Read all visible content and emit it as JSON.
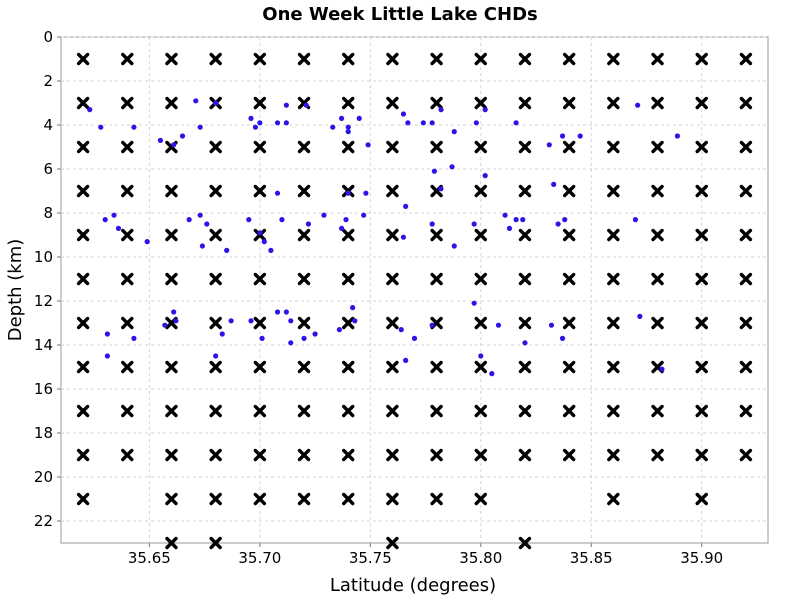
{
  "chart_data": {
    "type": "scatter",
    "title": "One Week Little Lake CHDs",
    "xlabel": "Latitude (degrees)",
    "ylabel": "Depth (km)",
    "xlim": [
      35.61,
      35.93
    ],
    "ylim": [
      0,
      23
    ],
    "y_inverted": true,
    "x_ticks": [
      35.65,
      35.7,
      35.75,
      35.8,
      35.85,
      35.9
    ],
    "x_tick_labels": [
      "35.65",
      "35.70",
      "35.75",
      "35.80",
      "35.85",
      "35.90"
    ],
    "y_ticks": [
      0,
      2,
      4,
      6,
      8,
      10,
      12,
      14,
      16,
      18,
      20,
      22
    ],
    "y_tick_labels": [
      "0",
      "2",
      "4",
      "6",
      "8",
      "10",
      "12",
      "14",
      "16",
      "18",
      "20",
      "22"
    ],
    "grid": true,
    "legend": "none",
    "colors": {
      "grid_marks": "#000000",
      "events": "#2a14e6"
    },
    "series": [
      {
        "marker": "x",
        "color": "#000000",
        "grid_x": [
          35.62,
          35.64,
          35.66,
          35.68,
          35.7,
          35.72,
          35.74,
          35.76,
          35.78,
          35.8,
          35.82,
          35.84,
          35.86,
          35.88,
          35.9,
          35.92
        ],
        "grid_y": [
          1,
          3,
          5,
          7,
          9,
          11,
          13,
          15,
          17,
          19
        ],
        "extra_points": [
          [
            35.62,
            21
          ],
          [
            35.66,
            21
          ],
          [
            35.68,
            21
          ],
          [
            35.7,
            21
          ],
          [
            35.72,
            21
          ],
          [
            35.74,
            21
          ],
          [
            35.76,
            21
          ],
          [
            35.78,
            21
          ],
          [
            35.8,
            21
          ],
          [
            35.86,
            21
          ],
          [
            35.9,
            21
          ],
          [
            35.66,
            23
          ],
          [
            35.68,
            23
          ],
          [
            35.76,
            23
          ],
          [
            35.82,
            23
          ]
        ]
      },
      {
        "marker": "circle",
        "color": "#2a14e6",
        "points": [
          [
            35.623,
            3.3
          ],
          [
            35.628,
            4.1
          ],
          [
            35.643,
            4.1
          ],
          [
            35.671,
            2.9
          ],
          [
            35.68,
            3.0
          ],
          [
            35.696,
            3.7
          ],
          [
            35.698,
            4.1
          ],
          [
            35.7,
            3.9
          ],
          [
            35.708,
            3.9
          ],
          [
            35.712,
            3.9
          ],
          [
            35.712,
            3.1
          ],
          [
            35.721,
            3.1
          ],
          [
            35.733,
            4.1
          ],
          [
            35.737,
            3.7
          ],
          [
            35.74,
            4.1
          ],
          [
            35.74,
            4.3
          ],
          [
            35.745,
            3.7
          ],
          [
            35.749,
            4.9
          ],
          [
            35.765,
            3.5
          ],
          [
            35.767,
            3.9
          ],
          [
            35.774,
            3.9
          ],
          [
            35.778,
            3.9
          ],
          [
            35.782,
            3.3
          ],
          [
            35.788,
            4.3
          ],
          [
            35.798,
            3.9
          ],
          [
            35.802,
            3.3
          ],
          [
            35.816,
            3.9
          ],
          [
            35.831,
            4.9
          ],
          [
            35.837,
            4.5
          ],
          [
            35.845,
            4.5
          ],
          [
            35.871,
            3.1
          ],
          [
            35.889,
            4.5
          ],
          [
            35.655,
            4.7
          ],
          [
            35.661,
            4.9
          ],
          [
            35.665,
            4.5
          ],
          [
            35.673,
            4.1
          ],
          [
            35.708,
            7.1
          ],
          [
            35.74,
            7.1
          ],
          [
            35.748,
            7.1
          ],
          [
            35.766,
            7.7
          ],
          [
            35.779,
            6.1
          ],
          [
            35.782,
            6.9
          ],
          [
            35.787,
            5.9
          ],
          [
            35.802,
            6.3
          ],
          [
            35.833,
            6.7
          ],
          [
            35.63,
            8.3
          ],
          [
            35.634,
            8.1
          ],
          [
            35.636,
            8.7
          ],
          [
            35.649,
            9.3
          ],
          [
            35.668,
            8.3
          ],
          [
            35.673,
            8.1
          ],
          [
            35.674,
            9.5
          ],
          [
            35.676,
            8.5
          ],
          [
            35.685,
            9.7
          ],
          [
            35.695,
            8.3
          ],
          [
            35.7,
            8.9
          ],
          [
            35.702,
            9.3
          ],
          [
            35.705,
            9.7
          ],
          [
            35.71,
            8.3
          ],
          [
            35.722,
            8.5
          ],
          [
            35.729,
            8.1
          ],
          [
            35.737,
            8.7
          ],
          [
            35.739,
            8.3
          ],
          [
            35.747,
            8.1
          ],
          [
            35.765,
            9.1
          ],
          [
            35.778,
            8.5
          ],
          [
            35.788,
            9.5
          ],
          [
            35.797,
            8.5
          ],
          [
            35.811,
            8.1
          ],
          [
            35.813,
            8.7
          ],
          [
            35.816,
            8.3
          ],
          [
            35.819,
            8.3
          ],
          [
            35.835,
            8.5
          ],
          [
            35.838,
            8.3
          ],
          [
            35.87,
            8.3
          ],
          [
            35.631,
            13.5
          ],
          [
            35.631,
            14.5
          ],
          [
            35.643,
            13.7
          ],
          [
            35.657,
            13.1
          ],
          [
            35.661,
            12.5
          ],
          [
            35.662,
            12.9
          ],
          [
            35.68,
            14.5
          ],
          [
            35.683,
            13.5
          ],
          [
            35.687,
            12.9
          ],
          [
            35.696,
            12.9
          ],
          [
            35.701,
            13.7
          ],
          [
            35.708,
            12.5
          ],
          [
            35.712,
            12.5
          ],
          [
            35.714,
            12.9
          ],
          [
            35.714,
            13.9
          ],
          [
            35.72,
            13.7
          ],
          [
            35.725,
            13.5
          ],
          [
            35.736,
            13.3
          ],
          [
            35.742,
            12.3
          ],
          [
            35.743,
            12.9
          ],
          [
            35.764,
            13.3
          ],
          [
            35.766,
            14.7
          ],
          [
            35.77,
            13.7
          ],
          [
            35.778,
            13.1
          ],
          [
            35.797,
            12.1
          ],
          [
            35.8,
            14.5
          ],
          [
            35.805,
            15.3
          ],
          [
            35.808,
            13.1
          ],
          [
            35.82,
            13.9
          ],
          [
            35.832,
            13.1
          ],
          [
            35.837,
            13.7
          ],
          [
            35.872,
            12.7
          ],
          [
            35.882,
            15.1
          ]
        ]
      }
    ]
  }
}
